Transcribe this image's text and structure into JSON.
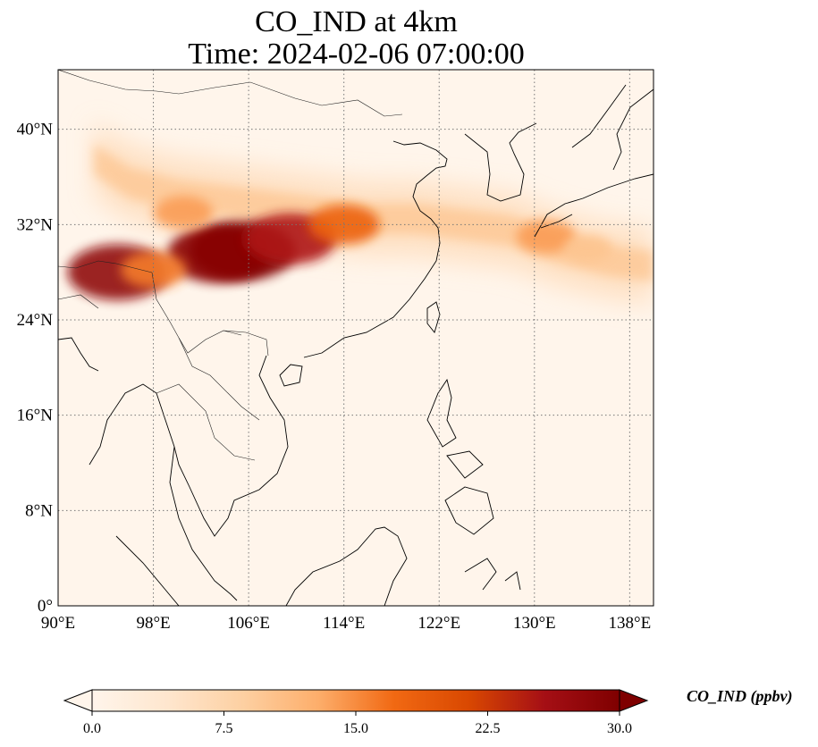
{
  "title": {
    "line1": "CO_IND at 4km",
    "line2": "Time: 2024-02-06 07:00:00"
  },
  "map": {
    "lon_range": [
      90,
      140
    ],
    "lat_range": [
      0,
      45
    ],
    "grid": "dotted",
    "lon_ticks": [
      {
        "value": 90,
        "label": "90°E"
      },
      {
        "value": 98,
        "label": "98°E"
      },
      {
        "value": 106,
        "label": "106°E"
      },
      {
        "value": 114,
        "label": "114°E"
      },
      {
        "value": 122,
        "label": "122°E"
      },
      {
        "value": 130,
        "label": "130°E"
      },
      {
        "value": 138,
        "label": "138°E"
      }
    ],
    "lat_ticks": [
      {
        "value": 0,
        "label": "0°"
      },
      {
        "value": 8,
        "label": "8°N"
      },
      {
        "value": 16,
        "label": "16°N"
      },
      {
        "value": 24,
        "label": "24°N"
      },
      {
        "value": 32,
        "label": "32°N"
      },
      {
        "value": 40,
        "label": "40°N"
      }
    ]
  },
  "colorbar": {
    "label": "CO_IND (ppbv)",
    "min": 0.0,
    "max": 30.0,
    "extend": "both",
    "ticks": [
      {
        "value": 0.0,
        "label": "0.0"
      },
      {
        "value": 7.5,
        "label": "7.5"
      },
      {
        "value": 15.0,
        "label": "15.0"
      },
      {
        "value": 22.5,
        "label": "22.5"
      },
      {
        "value": 30.0,
        "label": "30.0"
      }
    ],
    "colors": [
      "#fff5eb",
      "#fee6ce",
      "#fdd0a2",
      "#fdae6b",
      "#f16913",
      "#d94801",
      "#a50f15",
      "#7f0000"
    ]
  },
  "plume": {
    "band": [
      [
        93,
        37.5
      ],
      [
        96,
        35.5
      ],
      [
        100,
        34.5
      ],
      [
        104,
        34
      ],
      [
        108,
        33.5
      ],
      [
        112,
        33
      ],
      [
        116,
        32.5
      ],
      [
        120,
        32.5
      ],
      [
        124,
        32
      ],
      [
        128,
        31.5
      ],
      [
        132,
        30
      ],
      [
        136,
        29
      ],
      [
        140,
        28.5
      ]
    ],
    "hotspots": [
      {
        "lon": 105.5,
        "lat": 29.8,
        "value": 30.0
      },
      {
        "lon": 103.5,
        "lat": 29.5,
        "value": 29.0
      },
      {
        "lon": 109.5,
        "lat": 30.8,
        "value": 25.0
      },
      {
        "lon": 114.0,
        "lat": 32.0,
        "value": 18.0
      },
      {
        "lon": 95.0,
        "lat": 28.0,
        "value": 28.0
      },
      {
        "lon": 98.0,
        "lat": 28.2,
        "value": 16.0
      },
      {
        "lon": 100.5,
        "lat": 33.0,
        "value": 14.0
      },
      {
        "lon": 131.0,
        "lat": 31.0,
        "value": 14.0
      },
      {
        "lon": 134.5,
        "lat": 30.0,
        "value": 10.0
      }
    ]
  }
}
